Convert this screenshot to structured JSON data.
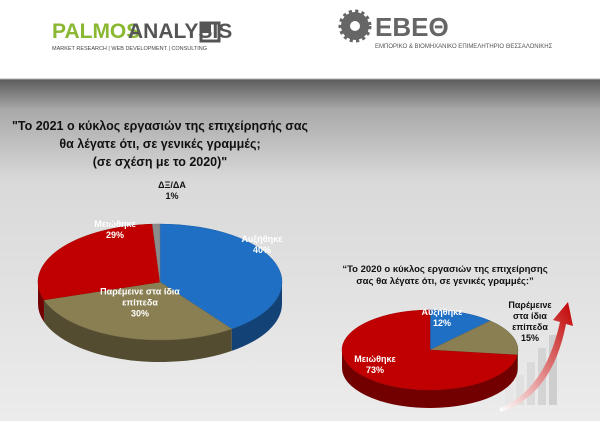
{
  "header": {
    "brand_a": "PALMOS",
    "brand_b": "ANALYSIS",
    "brand_tagline": "MARKET RESEARCH | WEB DEVELOPMENT | CONSULTING",
    "org_name": "ΕΒΕΘ",
    "org_full": "ΕΜΠΟΡΙΚΟ & ΒΙΟΜΗΧΑΝΙΚΟ ΕΠΙΜΕΛΗΤΗΡΙΟ ΘΕΣΣΑΛΟΝΙΚΗΣ"
  },
  "chart_data": [
    {
      "type": "pie",
      "title": [
        "\"Το 2021 ο κύκλος εργασιών της επιχείρησής σας",
        "θα λέγατε ότι, σε γενικές γραμμές;",
        "(σε σχέση με το 2020)\""
      ],
      "categories": [
        "Αυξήθηκε",
        "Παρέμεινε στα ίδια επίπεδα",
        "Μειώθηκε",
        "ΔΞ/ΔΑ"
      ],
      "values": [
        40,
        30,
        29,
        1
      ],
      "value_labels": [
        "40%",
        "30%",
        "29%",
        "1%"
      ],
      "colors": [
        "#1f6fc4",
        "#8a7f52",
        "#c00000",
        "#8c8c8c"
      ]
    },
    {
      "type": "pie",
      "title": [
        "“Το 2020 ο κύκλος εργασιών της επιχείρησης",
        "σας θα λέγατε ότι, σε γενικές γραμμές:”"
      ],
      "categories": [
        "Αυξήθηκε",
        "Παρέμεινε στα ίδια επίπεδα",
        "Μειώθηκε"
      ],
      "values": [
        12,
        15,
        73
      ],
      "value_labels": [
        "12%",
        "15%",
        "73%"
      ],
      "colors": [
        "#1f6fc4",
        "#8a7f52",
        "#c00000"
      ]
    }
  ]
}
